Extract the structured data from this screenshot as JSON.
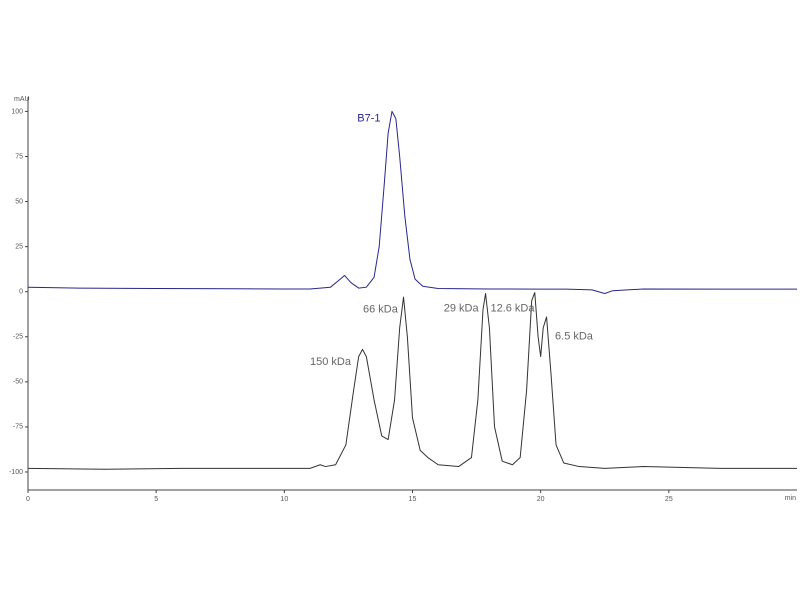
{
  "chart_data": {
    "type": "line",
    "x_label": "min",
    "y_label": "mAU",
    "xlim": [
      0,
      30
    ],
    "ylim": [
      -110,
      108
    ],
    "xticks": [
      0,
      5,
      10,
      15,
      20,
      25
    ],
    "yticks": [
      -100,
      -75,
      -50,
      -25,
      0,
      25,
      50,
      75,
      100
    ],
    "series": [
      {
        "color": "#27278a",
        "x": [
          0,
          2,
          5,
          8,
          10,
          11,
          11.8,
          12.1,
          12.35,
          12.6,
          12.9,
          13.2,
          13.5,
          13.7,
          13.9,
          14.05,
          14.2,
          14.35,
          14.5,
          14.7,
          14.9,
          15.1,
          15.4,
          16,
          18,
          20,
          21,
          22,
          22.5,
          22.8,
          24,
          27,
          30
        ],
        "values": [
          2.5,
          2,
          1.8,
          1.6,
          1.5,
          1.5,
          2.5,
          6,
          9,
          5,
          2,
          2.5,
          8,
          25,
          60,
          88,
          100,
          96,
          75,
          42,
          18,
          7,
          3,
          1.8,
          1.5,
          1.4,
          1.4,
          1,
          -1,
          0.5,
          1.5,
          1.4,
          1.4
        ]
      },
      {
        "color": "#333333",
        "x": [
          0,
          3,
          6,
          9,
          11,
          11.4,
          11.6,
          12,
          12.4,
          12.7,
          12.9,
          13.05,
          13.2,
          13.5,
          13.8,
          14.05,
          14.3,
          14.5,
          14.65,
          14.8,
          15.0,
          15.3,
          15.6,
          16,
          16.8,
          17.3,
          17.55,
          17.75,
          17.85,
          18.0,
          18.2,
          18.5,
          18.9,
          19.2,
          19.45,
          19.65,
          19.77,
          19.9,
          20.0,
          20.1,
          20.23,
          20.4,
          20.6,
          20.9,
          21.5,
          22.5,
          24,
          27,
          30
        ],
        "values": [
          -98,
          -98.5,
          -98,
          -98,
          -98,
          -96,
          -97,
          -96,
          -85,
          -55,
          -36,
          -32,
          -36,
          -60,
          -80,
          -82,
          -60,
          -20,
          -3,
          -25,
          -70,
          -88,
          -92,
          -96,
          -97,
          -92,
          -60,
          -10,
          -1,
          -20,
          -75,
          -94,
          -96,
          -92,
          -55,
          -5,
          -0.5,
          -25,
          -36,
          -20,
          -14,
          -45,
          -85,
          -95,
          -97,
          -98,
          -97,
          -98,
          -98
        ]
      }
    ],
    "annotations": [
      {
        "text": "B7-1",
        "x": 13.3,
        "y": 96,
        "color": "#27278a"
      },
      {
        "text": "150 kDa",
        "x": 11.8,
        "y": -39,
        "color": "#666666"
      },
      {
        "text": "66 kDa",
        "x": 13.75,
        "y": -10,
        "color": "#666666"
      },
      {
        "text": "29 kDa",
        "x": 16.9,
        "y": -9.5,
        "color": "#666666"
      },
      {
        "text": "12.6 kDa",
        "x": 18.9,
        "y": -9.5,
        "color": "#666666"
      },
      {
        "text": "6.5 kDa",
        "x": 21.3,
        "y": -25,
        "color": "#666666"
      }
    ]
  }
}
